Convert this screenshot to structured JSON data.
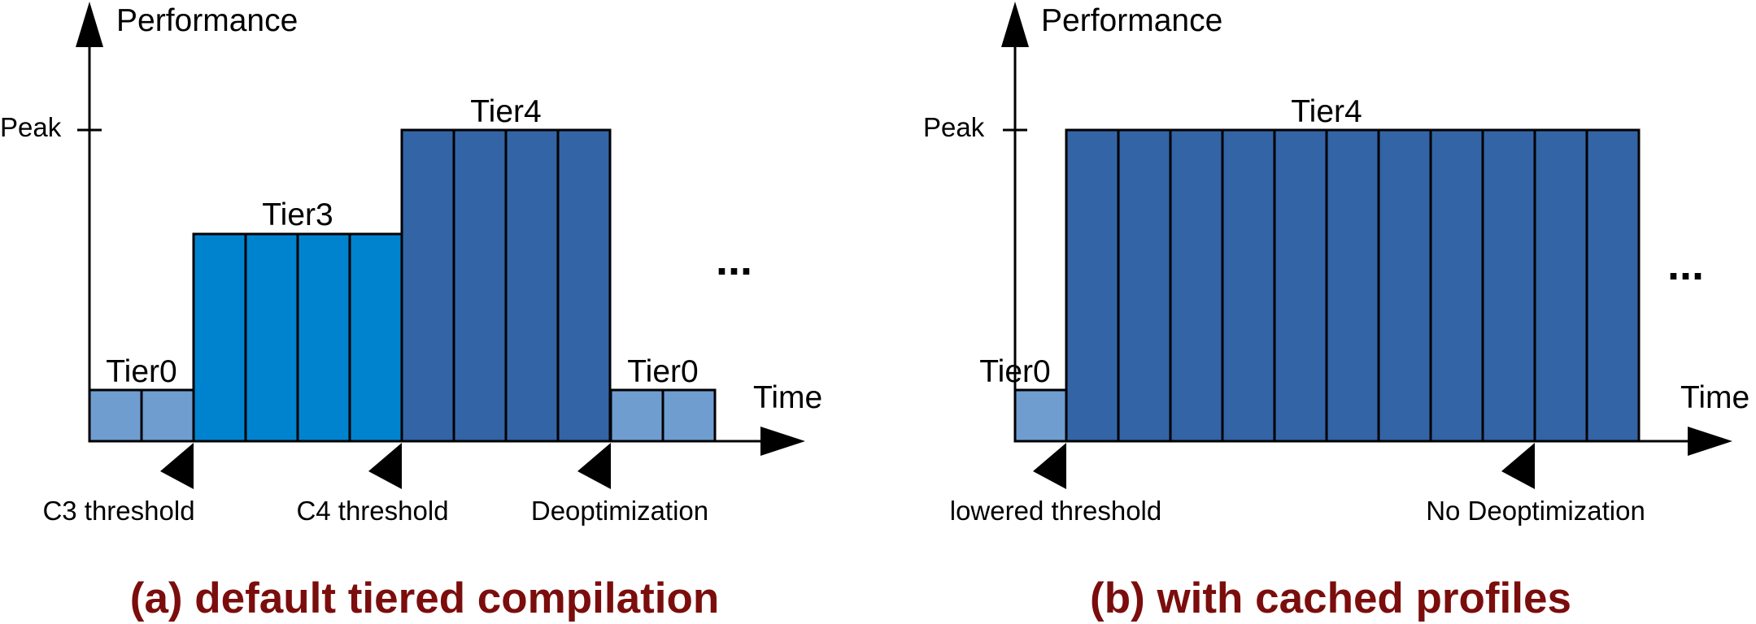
{
  "colors": {
    "tier0": "#6f9dd0",
    "tier3": "#0083cf",
    "tier4": "#3364a6",
    "caption": "#7b0d0d"
  },
  "panel_a": {
    "y_axis_label": "Performance",
    "x_axis_label": "Time",
    "peak_label": "Peak",
    "ellipsis": "...",
    "caption": "(a) default tiered compilation",
    "tiers": {
      "tier0_start": "Tier0",
      "tier3": "Tier3",
      "tier4": "Tier4",
      "tier0_end": "Tier0"
    },
    "markers": {
      "c3": "C3 threshold",
      "c4": "C4 threshold",
      "deopt": "Deoptimization"
    }
  },
  "panel_b": {
    "y_axis_label": "Performance",
    "x_axis_label": "Time",
    "peak_label": "Peak",
    "ellipsis": "...",
    "caption": "(b) with cached profiles",
    "tiers": {
      "tier0": "Tier0",
      "tier4": "Tier4"
    },
    "markers": {
      "lowered": "lowered threshold",
      "no_deopt": "No Deoptimization"
    }
  }
}
